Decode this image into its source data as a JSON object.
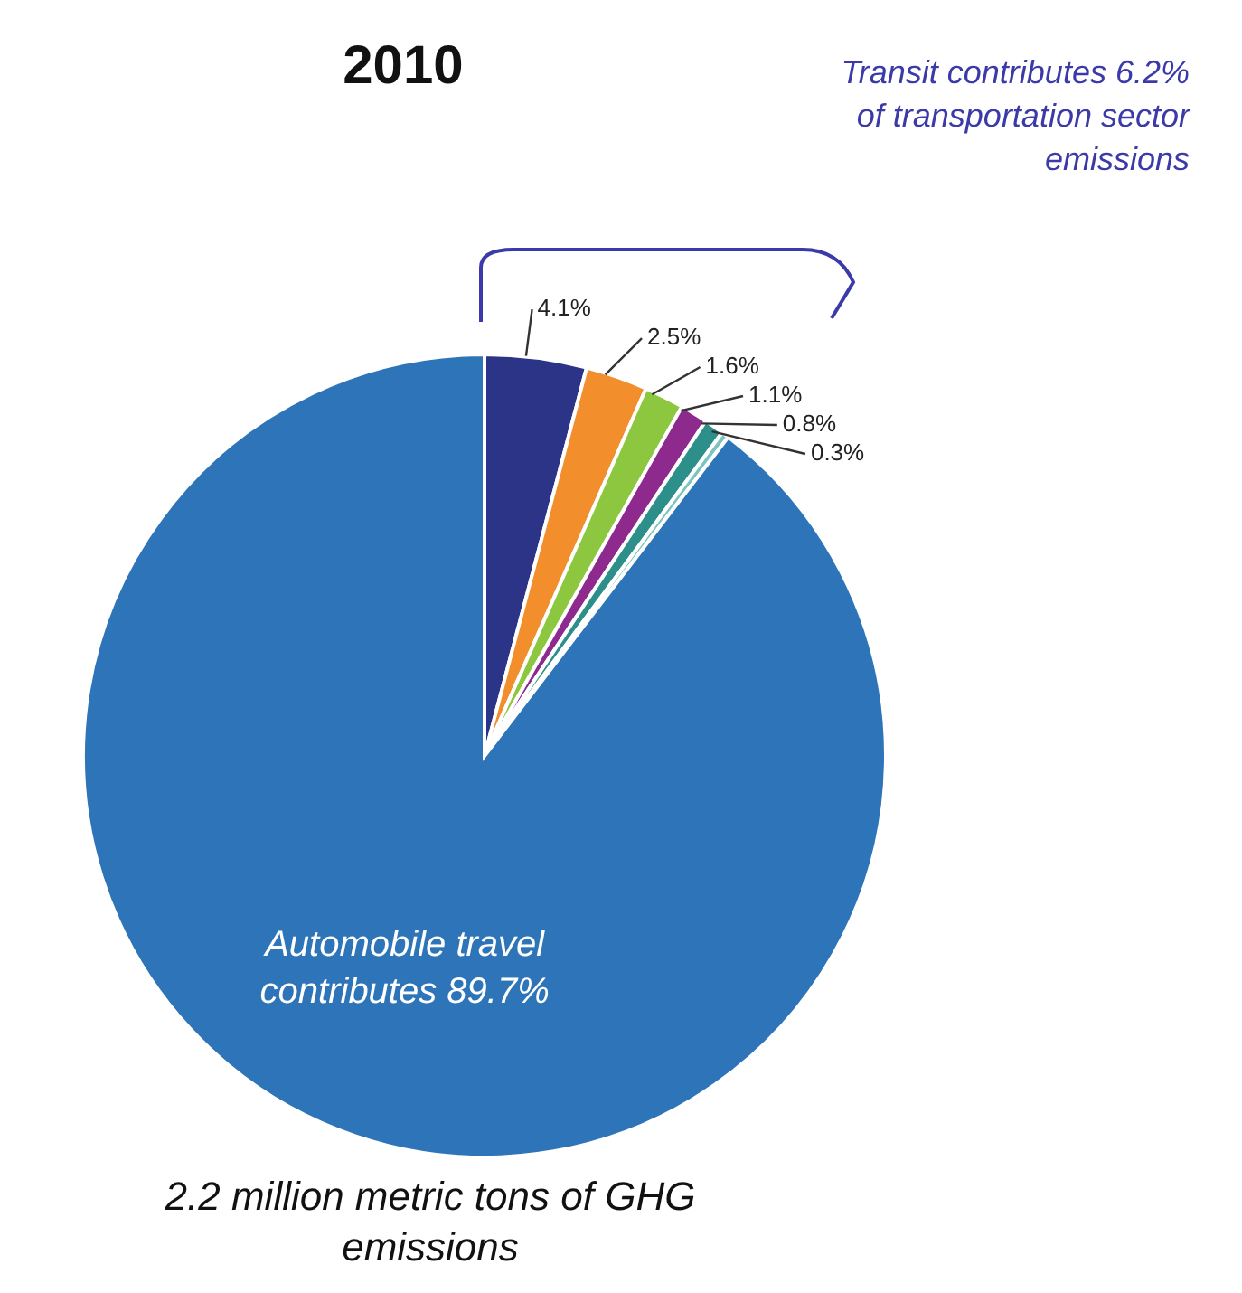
{
  "chart_data": {
    "type": "pie",
    "title": "2010",
    "categories": [
      null,
      null,
      null,
      null,
      null,
      null,
      null
    ],
    "values": [
      4.1,
      2.5,
      1.6,
      1.1,
      0.8,
      0.3,
      89.7
    ],
    "colors": [
      "#2b3486",
      "#f28e2b",
      "#8dc63f",
      "#8e2a8e",
      "#2d8f8a",
      "#7cc4c0",
      "#2e74b8"
    ],
    "value_labels": [
      "4.1%",
      "2.5%",
      "1.6%",
      "1.1%",
      "0.8%",
      "0.3%",
      "Automobile travel contributes 89.7%"
    ],
    "annotations": [
      "Transit contributes 6.2% of transportation sector emissions",
      "2.2 million metric tons of GHG emissions"
    ],
    "legend": false
  }
}
